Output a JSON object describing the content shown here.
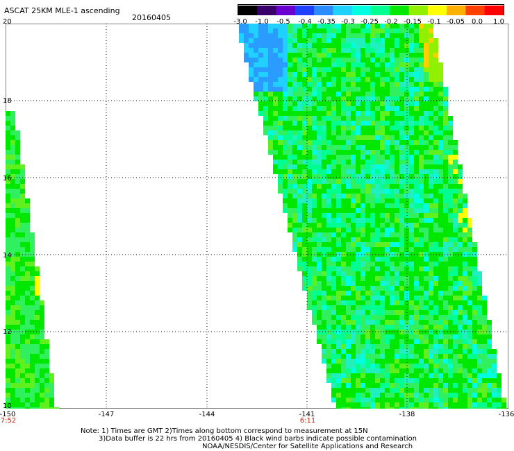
{
  "header": {
    "title": "ASCAT 25KM MLE-1 ascending",
    "date": "20160405"
  },
  "colorbar": {
    "labels": [
      "-3.0",
      "-1.0",
      "-0.5",
      "-0.4",
      "-0.35",
      "-0.3",
      "-0.25",
      "-0.2",
      "-0.15",
      "-0.1",
      "-0.05",
      "0.0",
      "1.0"
    ],
    "colors": [
      "#000000",
      "#3a006a",
      "#6a00d0",
      "#2040ff",
      "#2a8cff",
      "#20d0ff",
      "#00ffe0",
      "#00ff90",
      "#00e800",
      "#90f000",
      "#ffff00",
      "#ffb000",
      "#ff4000",
      "#ff0000"
    ]
  },
  "axes": {
    "lat_labels": [
      "20",
      "18",
      "16",
      "14",
      "12",
      "10"
    ],
    "lon_labels": [
      "-150",
      "-147",
      "-144",
      "-141",
      "-138",
      "-136"
    ],
    "time_labels": [
      {
        "text": "7:52",
        "at_lon": "-150"
      },
      {
        "text": "6:11",
        "at_lon": "-141"
      }
    ]
  },
  "notes": {
    "line1": "Note: 1) Times are GMT 2)Times along bottom correspond to measurement at 15N",
    "line2": "3)Data buffer is 22 hrs from 20160405 4) Black wind barbs indicate possible contamination",
    "line3": "NOAA/NESDIS/Center for Satellite Applications and Research"
  }
}
